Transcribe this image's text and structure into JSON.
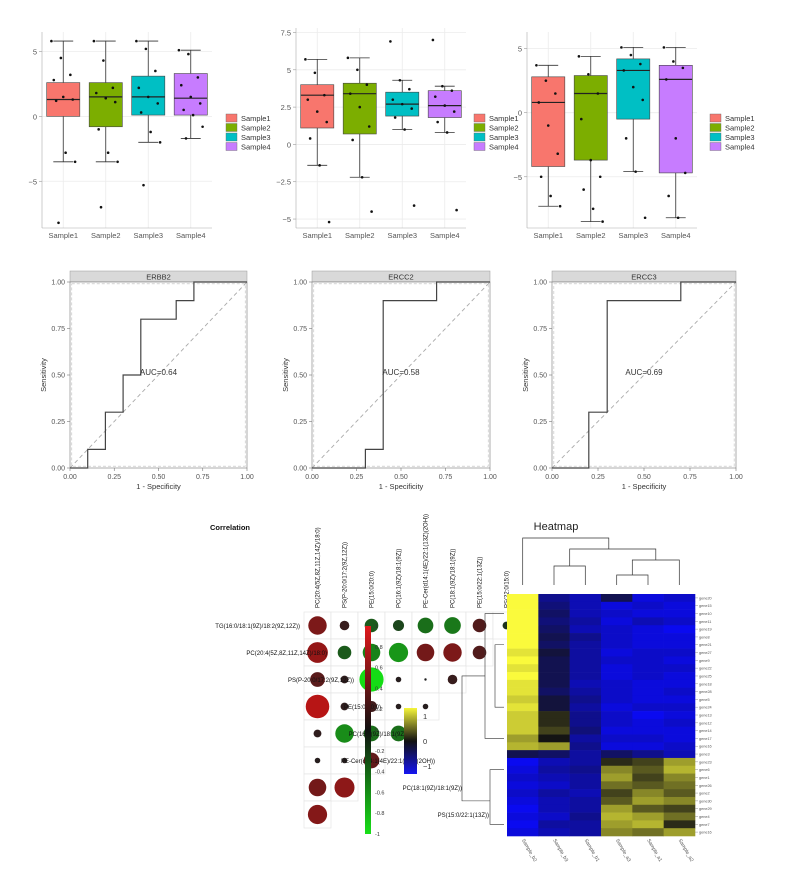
{
  "boxplots": [
    {
      "type": "boxplot",
      "categories": [
        "Sample1",
        "Sample2",
        "Sample3",
        "Sample4"
      ],
      "yticks": [
        5,
        0,
        -5
      ],
      "ylim": [
        -8.6,
        6.5
      ],
      "legend": [
        "Sample1",
        "Sample2",
        "Sample3",
        "Sample4"
      ],
      "boxes": [
        {
          "q1": 0.0,
          "median": 1.3,
          "q3": 2.6,
          "min": -3.5,
          "max": 5.8
        },
        {
          "q1": -0.8,
          "median": 1.5,
          "q3": 2.6,
          "min": -3.5,
          "max": 5.8
        },
        {
          "q1": 0.1,
          "median": 1.5,
          "q3": 3.1,
          "min": -2.0,
          "max": 5.8
        },
        {
          "q1": 0.1,
          "median": 1.4,
          "q3": 3.3,
          "min": -1.7,
          "max": 5.1
        }
      ],
      "points": [
        [
          5.8,
          4.5,
          3.2,
          2.8,
          1.5,
          1.3,
          1.2,
          -2.8,
          -3.5,
          -8.2
        ],
        [
          5.8,
          4.3,
          2.2,
          1.8,
          1.4,
          1.1,
          -1.0,
          -2.8,
          -3.5,
          -7.0
        ],
        [
          5.8,
          5.2,
          3.5,
          2.2,
          1.5,
          1.0,
          0.3,
          -1.2,
          -2.0,
          -5.3
        ],
        [
          5.1,
          4.8,
          3.0,
          2.4,
          1.5,
          1.0,
          0.5,
          0.1,
          -0.8,
          -1.7
        ]
      ]
    },
    {
      "type": "boxplot",
      "categories": [
        "Sample1",
        "Sample2",
        "Sample3",
        "Sample4"
      ],
      "yticks": [
        7.5,
        5.0,
        2.5,
        0.0,
        -2.5,
        -5.0
      ],
      "ylim": [
        -5.6,
        7.8
      ],
      "legend": [
        "Sample1",
        "Sample2",
        "Sample3",
        "Sample4"
      ],
      "boxes": [
        {
          "q1": 1.1,
          "median": 3.3,
          "q3": 4.0,
          "min": -1.4,
          "max": 5.7
        },
        {
          "q1": 0.7,
          "median": 3.4,
          "q3": 4.1,
          "min": -2.2,
          "max": 5.8
        },
        {
          "q1": 1.9,
          "median": 2.7,
          "q3": 3.5,
          "min": 1.0,
          "max": 4.3
        },
        {
          "q1": 1.8,
          "median": 2.6,
          "q3": 3.6,
          "min": 0.8,
          "max": 3.9
        }
      ],
      "points": [
        [
          5.7,
          4.8,
          3.3,
          3.0,
          2.2,
          1.5,
          0.4,
          -1.4,
          -5.2
        ],
        [
          5.8,
          5.0,
          4.0,
          3.4,
          2.5,
          1.2,
          0.3,
          -2.2,
          -4.5
        ],
        [
          6.9,
          4.3,
          3.7,
          3.0,
          2.7,
          2.4,
          1.8,
          1.0,
          -4.1
        ],
        [
          7.0,
          3.9,
          3.6,
          3.2,
          2.6,
          2.2,
          1.5,
          0.8,
          -4.4
        ]
      ]
    },
    {
      "type": "boxplot",
      "categories": [
        "Sample1",
        "Sample2",
        "Sample3",
        "Sample4"
      ],
      "yticks": [
        5,
        0,
        -5
      ],
      "ylim": [
        -9.0,
        6.3
      ],
      "legend": [
        "Sample1",
        "Sample2",
        "Sample3",
        "Sample4"
      ],
      "boxes": [
        {
          "q1": -4.2,
          "median": 0.8,
          "q3": 2.8,
          "min": -7.3,
          "max": 3.7
        },
        {
          "q1": -3.7,
          "median": 1.5,
          "q3": 2.9,
          "min": -8.5,
          "max": 4.4
        },
        {
          "q1": -0.5,
          "median": 3.3,
          "q3": 4.2,
          "min": -4.6,
          "max": 5.1
        },
        {
          "q1": -4.7,
          "median": 2.6,
          "q3": 3.7,
          "min": -8.2,
          "max": 5.1
        }
      ],
      "points": [
        [
          3.7,
          2.5,
          1.5,
          0.8,
          -1.0,
          -3.2,
          -5.0,
          -6.5,
          -7.3
        ],
        [
          4.4,
          3.0,
          1.5,
          -0.5,
          -3.7,
          -5.0,
          -6.0,
          -7.5,
          -8.5
        ],
        [
          5.1,
          4.5,
          3.8,
          3.3,
          2.0,
          1.0,
          -2.0,
          -4.6,
          -8.2
        ],
        [
          5.1,
          4.0,
          3.5,
          2.6,
          -2.0,
          -4.7,
          -6.5,
          -8.2
        ]
      ]
    }
  ],
  "legend_colors": [
    "#f8766d",
    "#7cae00",
    "#00bfc4",
    "#c77cff"
  ],
  "rocs": [
    {
      "type": "line",
      "title": "ERBB2",
      "xlabel": "1 - Specificity",
      "ylabel": "Sensitivity",
      "auc_label": "AUC=0.64",
      "xticks": [
        "0.00",
        "0.25",
        "0.50",
        "0.75",
        "1.00"
      ],
      "yticks": [
        "1.00",
        "0.75",
        "0.50",
        "0.25",
        "0.00"
      ],
      "curve": [
        [
          0,
          0
        ],
        [
          0.1,
          0
        ],
        [
          0.1,
          0.1
        ],
        [
          0.2,
          0.1
        ],
        [
          0.2,
          0.2
        ],
        [
          0.2,
          0.3
        ],
        [
          0.3,
          0.3
        ],
        [
          0.3,
          0.4
        ],
        [
          0.3,
          0.5
        ],
        [
          0.4,
          0.5
        ],
        [
          0.4,
          0.6
        ],
        [
          0.4,
          0.7
        ],
        [
          0.4,
          0.8
        ],
        [
          0.5,
          0.8
        ],
        [
          0.6,
          0.8
        ],
        [
          0.6,
          0.9
        ],
        [
          0.7,
          0.9
        ],
        [
          0.7,
          1.0
        ],
        [
          0.8,
          1.0
        ],
        [
          1.0,
          1.0
        ]
      ]
    },
    {
      "type": "line",
      "title": "ERCC2",
      "xlabel": "1 - Specificity",
      "ylabel": "Sensitivity",
      "auc_label": "AUC=0.58",
      "xticks": [
        "0.00",
        "0.25",
        "0.50",
        "0.75",
        "1.00"
      ],
      "yticks": [
        "1.00",
        "0.75",
        "0.50",
        "0.25",
        "0.00"
      ],
      "curve": [
        [
          0,
          0
        ],
        [
          0.3,
          0
        ],
        [
          0.3,
          0.1
        ],
        [
          0.4,
          0.1
        ],
        [
          0.4,
          0.9
        ],
        [
          0.5,
          0.9
        ],
        [
          0.6,
          0.9
        ],
        [
          0.7,
          0.9
        ],
        [
          0.7,
          1.0
        ],
        [
          1.0,
          1.0
        ]
      ]
    },
    {
      "type": "line",
      "title": "ERCC3",
      "xlabel": "1 - Specificity",
      "ylabel": "Sensitivity",
      "auc_label": "AUC=0.69",
      "xticks": [
        "0.00",
        "0.25",
        "0.50",
        "0.75",
        "1.00"
      ],
      "yticks": [
        "1.00",
        "0.75",
        "0.50",
        "0.25",
        "0.00"
      ],
      "curve": [
        [
          0,
          0
        ],
        [
          0.2,
          0
        ],
        [
          0.2,
          0.2
        ],
        [
          0.2,
          0.3
        ],
        [
          0.3,
          0.3
        ],
        [
          0.3,
          0.9
        ],
        [
          0.4,
          0.9
        ],
        [
          0.5,
          0.9
        ],
        [
          0.6,
          0.9
        ],
        [
          0.7,
          0.9
        ],
        [
          0.7,
          1.0
        ],
        [
          1.0,
          1.0
        ]
      ]
    }
  ],
  "correlation": {
    "type": "heatmap",
    "title": "Correlation",
    "row_labels": [
      "TG(16:0/18:1(9Z)/18:2(9Z,12Z))",
      "PC(20:4(5Z,8Z,11Z,14Z)/18:0)",
      "PS(P-20:0/17:2(9Z,12Z))",
      "PE(15:0/20:0)",
      "PC(16:1(9Z)/18:1(9Z))",
      "PE-Cer(d14:1(4E)/22:1(13Z)(2OH))",
      "PC(18:1(9Z)/18:1(9Z))",
      "PS(15:0/22:1(13Z))"
    ],
    "col_labels": [
      "PC(20:4(5Z,8Z,11Z,14Z)/18:0)",
      "PS(P-20:0/17:2(9Z,12Z))",
      "PE(15:0/20:0)",
      "PC(16:1(9Z)/18:1(9Z))",
      "PE-Cer(d14:1(4E)/22:1(13Z)(2OH))",
      "PC(18:1(9Z)/18:1(9Z))",
      "PE(15:0/22:1(13Z))",
      "PS(22:0/15:0)"
    ],
    "matrix": [
      [
        0.55,
        0.15,
        -0.3,
        -0.2,
        -0.4,
        -0.45,
        0.3,
        -0.1
      ],
      [
        0.7,
        -0.3,
        -0.5,
        -0.6,
        0.5,
        0.55,
        0.3,
        null
      ],
      [
        0.35,
        0.1,
        -0.95,
        0.05,
        0.0,
        0.15,
        null,
        null
      ],
      [
        0.9,
        0.1,
        0.2,
        0.05,
        0.05,
        null,
        null,
        null
      ],
      [
        0.1,
        -0.55,
        -0.4,
        -0.4,
        null,
        null,
        null,
        null
      ],
      [
        0.05,
        0.05,
        0.4,
        null,
        null,
        null,
        null,
        null
      ],
      [
        0.5,
        0.65,
        null,
        null,
        null,
        null,
        null,
        null
      ],
      [
        0.6,
        null,
        null,
        null,
        null,
        null,
        null,
        null
      ]
    ],
    "scale_ticks": [
      "1",
      "0.8",
      "0.6",
      "0.4",
      "0.2",
      "0",
      "-0.2",
      "-0.4",
      "-0.6",
      "-0.8",
      "-1"
    ]
  },
  "heatmap": {
    "type": "heatmap",
    "title": "Heatmap",
    "col_labels": [
      "Sample_b2",
      "Sample_b3",
      "Sample_b1",
      "Sample_a3",
      "Sample_a1",
      "Sample_a2"
    ],
    "row_labels": [
      "gene20",
      "gene15",
      "gene10",
      "gene11",
      "gene19",
      "gene8",
      "gene21",
      "gene27",
      "gene9",
      "gene22",
      "gene25",
      "gene18",
      "gene28",
      "gene5",
      "gene24",
      "gene13",
      "gene12",
      "gene14",
      "gene17",
      "gene16",
      "gene3",
      "gene23",
      "gene6",
      "gene1",
      "gene26",
      "gene2",
      "gene30",
      "gene29",
      "gene4",
      "gene7",
      "gene16"
    ],
    "scale_ticks": [
      "1",
      "0",
      "-1"
    ],
    "values": [
      [
        1.0,
        -0.5,
        -0.7,
        -0.2,
        -0.9,
        -0.8
      ],
      [
        1.0,
        -0.4,
        -0.7,
        -0.9,
        -0.8,
        -0.9
      ],
      [
        1.0,
        -0.3,
        -0.7,
        -0.8,
        -0.9,
        -0.9
      ],
      [
        1.0,
        -0.4,
        -0.6,
        -0.9,
        -0.7,
        -0.8
      ],
      [
        1.0,
        -0.3,
        -0.7,
        -0.8,
        -0.9,
        -1.0
      ],
      [
        1.0,
        -0.2,
        -0.5,
        -0.8,
        -0.9,
        -0.9
      ],
      [
        1.0,
        -0.3,
        -0.6,
        -0.8,
        -0.9,
        -0.9
      ],
      [
        0.9,
        -0.1,
        -0.6,
        -0.9,
        -0.8,
        -0.8
      ],
      [
        1.0,
        -0.2,
        -0.6,
        -0.8,
        -0.8,
        -0.9
      ],
      [
        0.9,
        -0.2,
        -0.6,
        -0.9,
        -0.8,
        -0.8
      ],
      [
        1.0,
        -0.2,
        -0.6,
        -0.9,
        -0.8,
        -0.9
      ],
      [
        0.9,
        -0.2,
        -0.7,
        -0.8,
        -0.9,
        -0.9
      ],
      [
        0.9,
        -0.3,
        -0.6,
        -0.8,
        -0.9,
        -0.8
      ],
      [
        0.8,
        -0.1,
        -0.5,
        -0.8,
        -0.9,
        -0.9
      ],
      [
        0.9,
        -0.1,
        -0.6,
        -0.9,
        -0.8,
        -0.8
      ],
      [
        0.8,
        0.1,
        -0.5,
        -0.8,
        -1.0,
        -0.9
      ],
      [
        0.8,
        0.1,
        -0.5,
        -0.8,
        -0.9,
        -0.8
      ],
      [
        0.8,
        0.2,
        -0.4,
        -0.9,
        -0.9,
        -0.9
      ],
      [
        0.6,
        0.0,
        -0.6,
        -0.8,
        -0.8,
        -0.9
      ],
      [
        0.7,
        0.6,
        -0.5,
        -0.9,
        -0.9,
        -0.8
      ],
      [
        -0.2,
        -0.3,
        -0.6,
        -0.3,
        -0.5,
        -0.7
      ],
      [
        -1.0,
        -0.7,
        -0.6,
        0.1,
        0.2,
        0.6
      ],
      [
        -0.9,
        -0.6,
        -0.5,
        0.5,
        0.3,
        0.7
      ],
      [
        -0.8,
        -0.7,
        -0.6,
        0.6,
        0.2,
        0.5
      ],
      [
        -0.9,
        -0.8,
        -0.6,
        0.4,
        0.3,
        0.4
      ],
      [
        -0.8,
        -0.6,
        -0.7,
        0.2,
        0.5,
        0.3
      ],
      [
        -0.9,
        -0.7,
        -0.6,
        0.3,
        0.6,
        0.5
      ],
      [
        -1.0,
        -0.7,
        -0.6,
        0.6,
        0.3,
        0.2
      ],
      [
        -0.9,
        -0.8,
        -0.5,
        0.7,
        0.6,
        0.4
      ],
      [
        -1.0,
        -0.6,
        -0.6,
        0.6,
        0.7,
        0.1
      ],
      [
        -0.9,
        -0.7,
        -0.6,
        0.5,
        0.4,
        0.6
      ]
    ]
  }
}
